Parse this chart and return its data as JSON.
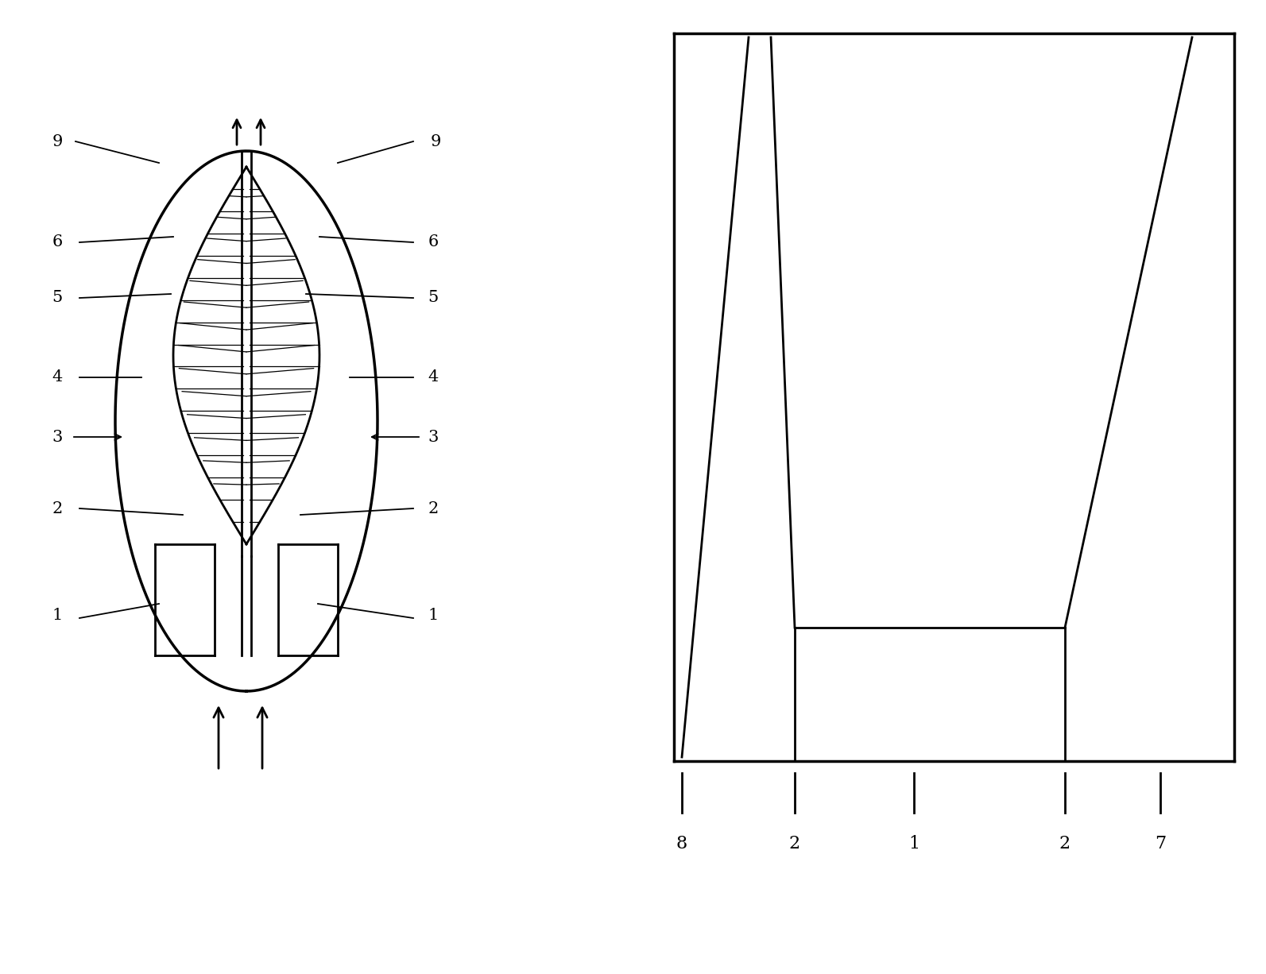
{
  "bg_color": "#ffffff",
  "line_color": "#000000",
  "fig_width": 15.93,
  "fig_height": 12.26,
  "lw": 2.0,
  "fs": 15
}
